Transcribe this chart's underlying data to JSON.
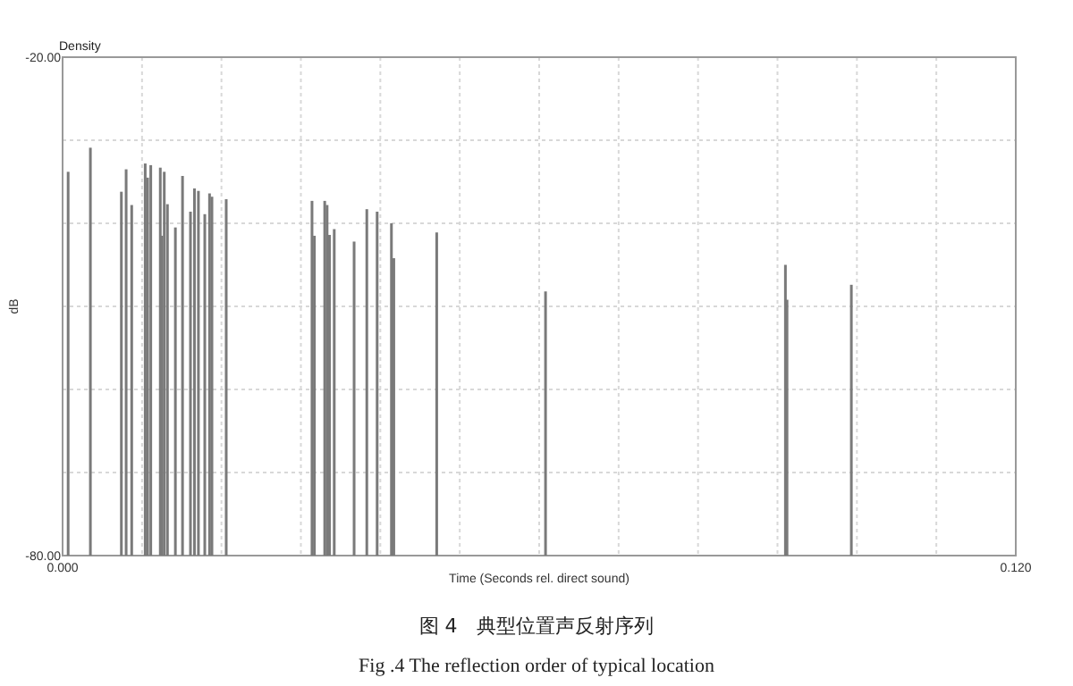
{
  "chart_data": {
    "type": "bar",
    "xlabel": "Time (Seconds rel. direct sound)",
    "ylabel": "dB",
    "color": "#7a7a7a",
    "x": [
      0.0007,
      0.0035,
      0.0074,
      0.008,
      0.0087,
      0.0104,
      0.0107,
      0.0111,
      0.0123,
      0.0125,
      0.0128,
      0.0132,
      0.0142,
      0.0151,
      0.0161,
      0.0166,
      0.0171,
      0.0179,
      0.0185,
      0.0188,
      0.0206,
      0.0314,
      0.0317,
      0.033,
      0.0333,
      0.0336,
      0.0342,
      0.0367,
      0.0383,
      0.0396,
      0.0414,
      0.0417,
      0.0471,
      0.0608,
      0.091,
      0.0912,
      0.0993
    ],
    "base": [
      -80,
      -80,
      -80,
      -80,
      -80,
      -80,
      -80,
      -80,
      -80,
      -80,
      -80,
      -80,
      -80,
      -80,
      -80,
      -80,
      -80,
      -80,
      -80,
      -80,
      -80,
      -80,
      -80,
      -80,
      -80,
      -80,
      -80,
      -80,
      -80,
      -80,
      -80,
      -80,
      -80,
      -80,
      -80,
      -80,
      -80
    ],
    "values": [
      46.2,
      49.1,
      43.8,
      46.5,
      42.2,
      47.2,
      45.5,
      47.0,
      46.7,
      38.5,
      46.2,
      42.3,
      39.5,
      45.7,
      41.4,
      44.2,
      43.9,
      41.1,
      43.6,
      43.2,
      42.9,
      42.7,
      38.5,
      42.7,
      42.2,
      38.6,
      39.3,
      37.8,
      41.7,
      41.4,
      40.0,
      35.8,
      38.9,
      31.8,
      35.0,
      30.8,
      32.6
    ],
    "xlim": [
      0,
      0.12
    ],
    "xticks": [
      {
        "value": 0,
        "label": "0.000"
      },
      {
        "value": 0.01,
        "label": null
      },
      {
        "value": 0.02,
        "label": null
      },
      {
        "value": 0.03,
        "label": null
      },
      {
        "value": 0.04,
        "label": null
      },
      {
        "value": 0.05,
        "label": null
      },
      {
        "value": 0.06,
        "label": null
      },
      {
        "value": 0.07,
        "label": null
      },
      {
        "value": 0.08,
        "label": null
      },
      {
        "value": 0.09,
        "label": null
      },
      {
        "value": 0.1,
        "label": null
      },
      {
        "value": 0.11,
        "label": null
      },
      {
        "value": 0.12,
        "label": "0.120"
      }
    ],
    "ylim": [
      -80,
      -20
    ],
    "yticks": [
      {
        "value": -80,
        "label": "-80.00"
      },
      {
        "value": -70,
        "label": null
      },
      {
        "value": -60,
        "label": null
      },
      {
        "value": -50,
        "label": null
      },
      {
        "value": -40,
        "label": null
      },
      {
        "value": -30,
        "label": null
      },
      {
        "value": -20,
        "label": "-20.00"
      }
    ],
    "grid": true,
    "annotations": [
      "Density",
      "图 4　典型位置声反射序列",
      "Fig .4    The reflection order of typical location"
    ]
  }
}
